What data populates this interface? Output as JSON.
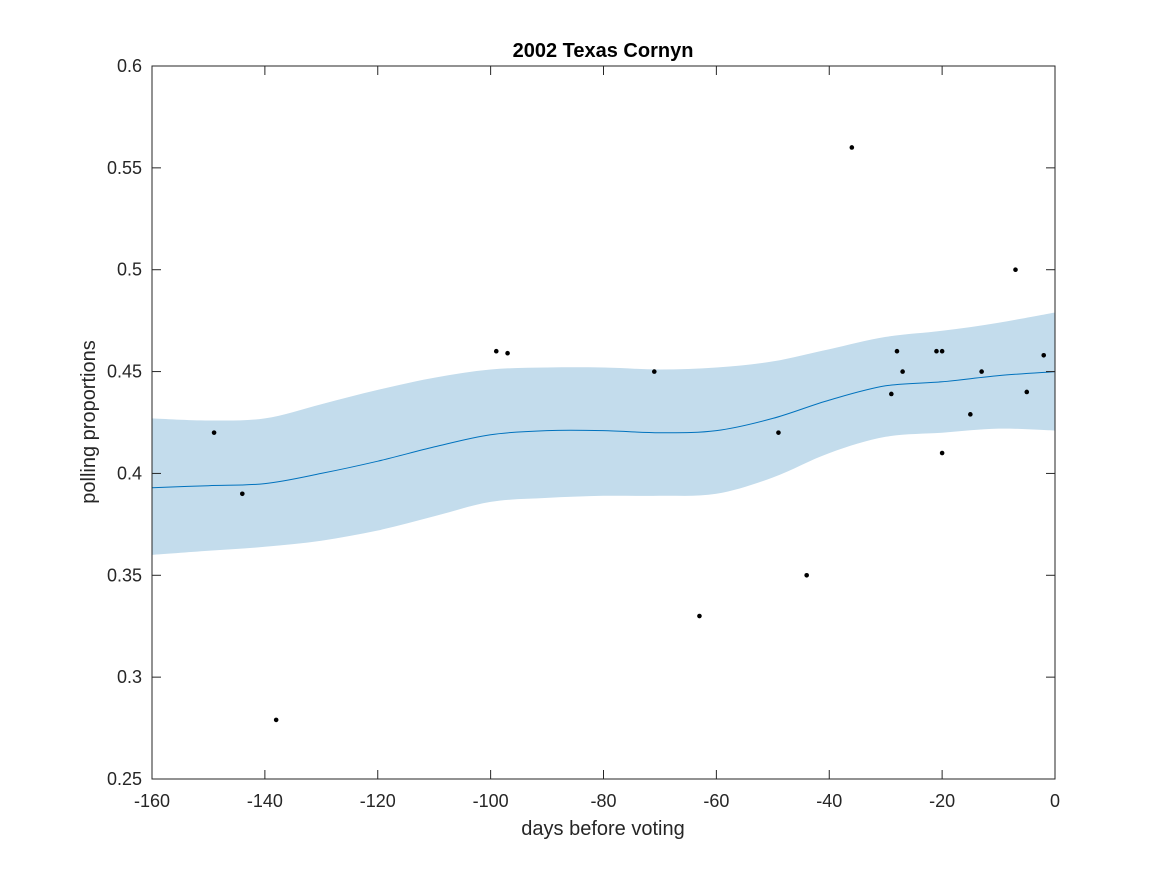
{
  "chart_data": {
    "type": "scatter",
    "title": "2002 Texas Cornyn",
    "xlabel": "days before voting",
    "ylabel": "polling proportions",
    "xlim": [
      -160,
      0
    ],
    "ylim": [
      0.25,
      0.6
    ],
    "xticks": [
      -160,
      -140,
      -120,
      -100,
      -80,
      -60,
      -40,
      -20,
      0
    ],
    "yticks": [
      0.25,
      0.3,
      0.35,
      0.4,
      0.45,
      0.5,
      0.55,
      0.6
    ],
    "xtick_labels": [
      "-160",
      "-140",
      "-120",
      "-100",
      "-80",
      "-60",
      "-40",
      "-20",
      "0"
    ],
    "ytick_labels": [
      "0.25",
      "0.3",
      "0.35",
      "0.4",
      "0.45",
      "0.5",
      "0.55",
      "0.6"
    ],
    "grid": false,
    "colors": {
      "points": "#000000",
      "trend": "#0072BD",
      "band": "#c3dcec",
      "axes": "#262626"
    },
    "points": {
      "x": [
        -149,
        -144,
        -138,
        -99,
        -97,
        -71,
        -63,
        -49,
        -44,
        -36,
        -29,
        -28,
        -27,
        -21,
        -20,
        -20,
        -15,
        -13,
        -7,
        -5,
        -2
      ],
      "y": [
        0.42,
        0.39,
        0.279,
        0.46,
        0.459,
        0.45,
        0.33,
        0.42,
        0.35,
        0.56,
        0.439,
        0.46,
        0.45,
        0.46,
        0.46,
        0.41,
        0.429,
        0.45,
        0.5,
        0.44,
        0.458
      ]
    },
    "trend": {
      "x": [
        -160,
        -150,
        -140,
        -130,
        -120,
        -110,
        -100,
        -90,
        -80,
        -70,
        -60,
        -50,
        -40,
        -30,
        -20,
        -10,
        0
      ],
      "y": [
        0.393,
        0.394,
        0.395,
        0.4,
        0.406,
        0.413,
        0.419,
        0.421,
        0.421,
        0.42,
        0.421,
        0.427,
        0.436,
        0.443,
        0.445,
        0.448,
        0.45
      ]
    },
    "band": {
      "x": [
        -160,
        -150,
        -140,
        -130,
        -120,
        -110,
        -100,
        -90,
        -80,
        -70,
        -60,
        -50,
        -40,
        -30,
        -20,
        -10,
        0
      ],
      "upper": [
        0.427,
        0.426,
        0.427,
        0.434,
        0.441,
        0.447,
        0.451,
        0.452,
        0.452,
        0.451,
        0.452,
        0.455,
        0.461,
        0.467,
        0.47,
        0.474,
        0.479
      ],
      "lower": [
        0.36,
        0.362,
        0.364,
        0.367,
        0.372,
        0.379,
        0.386,
        0.388,
        0.389,
        0.389,
        0.39,
        0.398,
        0.41,
        0.418,
        0.42,
        0.422,
        0.421
      ]
    }
  }
}
